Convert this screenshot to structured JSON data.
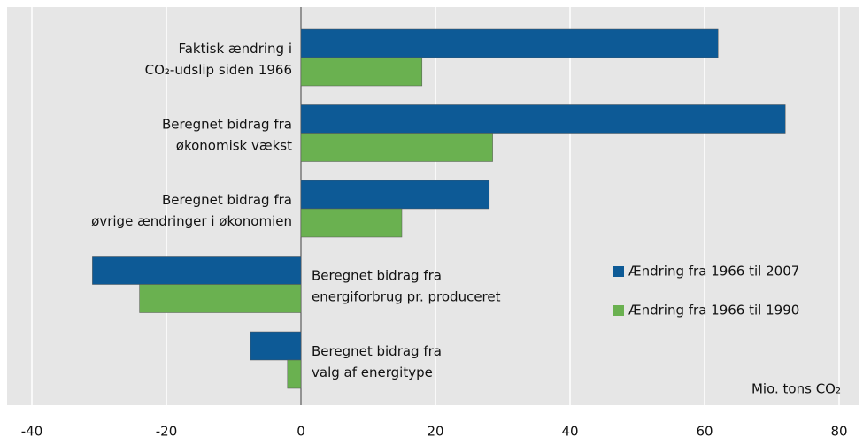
{
  "chart_data": {
    "type": "bar",
    "orientation": "horizontal",
    "categories": [
      "Faktisk ændring i\nCO₂-udslip siden 1966",
      "Beregnet bidrag fra\nøkonomisk vækst",
      "Beregnet bidrag fra\nøvrige ændringer i økonomien",
      "Beregnet bidrag fra\nenergiforbrug pr. produceret",
      "Beregnet bidrag fra\nvalg af energitype"
    ],
    "series": [
      {
        "name": "Ændring fra 1966 til 2007",
        "color": "#0d5a96",
        "values": [
          62,
          72,
          28,
          -31,
          -7.5
        ]
      },
      {
        "name": "Ændring fra 1966 til 1990",
        "color": "#6ab150",
        "values": [
          18,
          28.5,
          15,
          -24,
          -2
        ]
      }
    ],
    "xlabel": "Mio. tons CO₂",
    "xlim": [
      -40,
      80
    ],
    "xticks": [
      -40,
      -20,
      0,
      20,
      40,
      60,
      80
    ],
    "grid": true
  }
}
